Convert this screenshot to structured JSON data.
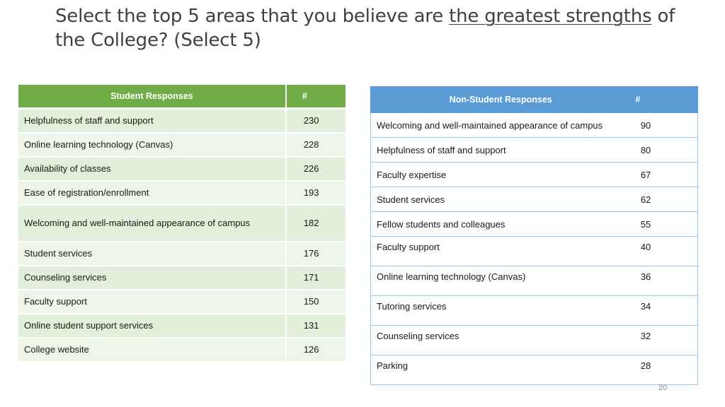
{
  "title": {
    "part1": "Select the top 5 areas that you believe are ",
    "underlined": "the greatest strengths",
    "part2": " of the College? (Select 5)"
  },
  "student_table": {
    "headers": [
      "Student Responses",
      "#"
    ],
    "rows": [
      {
        "label": "Helpfulness of staff and support",
        "count": "230"
      },
      {
        "label": "Online learning technology (Canvas)",
        "count": "228"
      },
      {
        "label": "Availability of classes",
        "count": "226"
      },
      {
        "label": "Ease of registration/enrollment",
        "count": "193"
      },
      {
        "label": "Welcoming and well-maintained appearance of campus",
        "count": "182"
      },
      {
        "label": "Student services",
        "count": "176"
      },
      {
        "label": "Counseling services",
        "count": "171"
      },
      {
        "label": "Faculty support",
        "count": "150"
      },
      {
        "label": "Online student support services",
        "count": "131"
      },
      {
        "label": "College website",
        "count": "126"
      }
    ]
  },
  "non_student_table": {
    "headers": [
      "Non-Student Responses",
      "#"
    ],
    "rows": [
      {
        "label": "Welcoming and well-maintained appearance of campus",
        "count": "90"
      },
      {
        "label": "Helpfulness of staff and support",
        "count": "80"
      },
      {
        "label": "Faculty expertise",
        "count": "67"
      },
      {
        "label": "Student services",
        "count": "62"
      },
      {
        "label": "Fellow students and colleagues",
        "count": "55"
      },
      {
        "label": "Faculty support",
        "count": "40"
      },
      {
        "label": "Online learning technology (Canvas)",
        "count": "36"
      },
      {
        "label": "Tutoring services",
        "count": "34"
      },
      {
        "label": "Counseling services",
        "count": "32"
      },
      {
        "label": "Parking",
        "count": "28"
      }
    ]
  },
  "page_number": "20",
  "colors": {
    "student_header": "#70ad47",
    "student_row": "#e2efda",
    "non_student_header": "#5b9bd5",
    "non_student_border": "#9dc3e6"
  }
}
